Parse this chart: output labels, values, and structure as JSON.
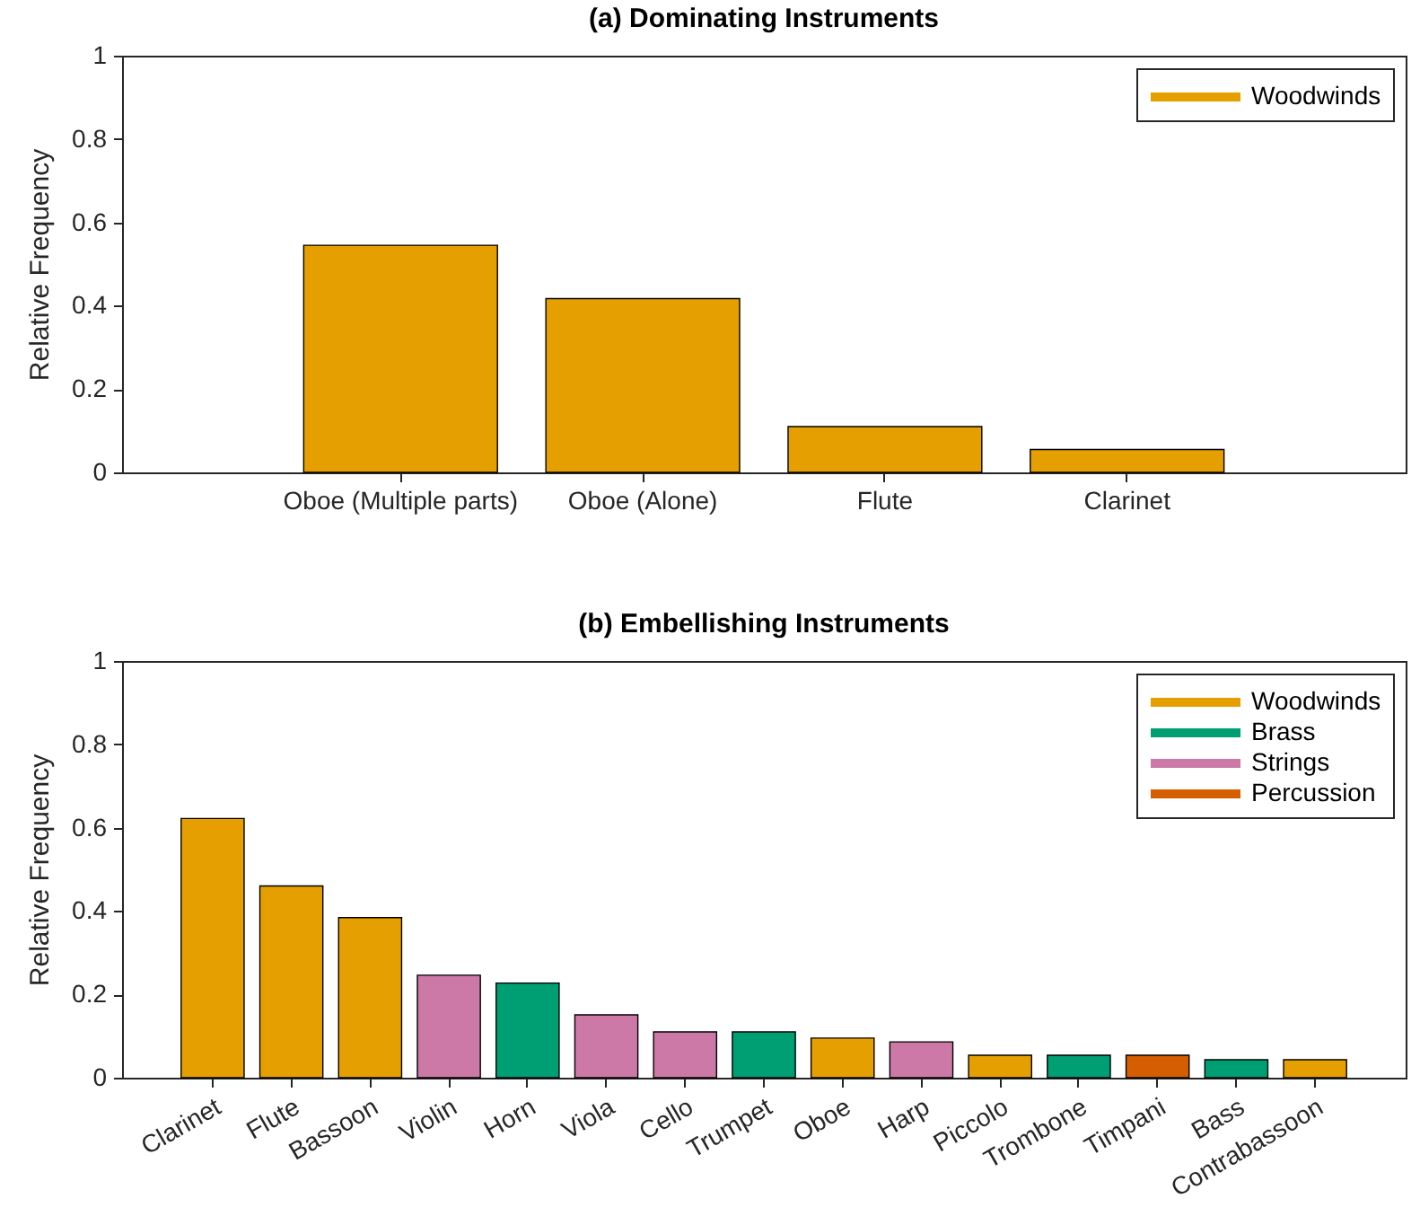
{
  "chart_data": [
    {
      "type": "bar",
      "title": "(a) Dominating Instruments",
      "ylabel": "Relative Frequency",
      "categories": [
        "Oboe (Multiple parts)",
        "Oboe (Alone)",
        "Flute",
        "Clarinet"
      ],
      "series": [
        {
          "name": "Woodwinds",
          "color": "#e69f00",
          "values": [
            0.545,
            0.417,
            0.11,
            0.055
          ]
        }
      ],
      "ylim": [
        0,
        1
      ],
      "yticks": [
        0,
        0.2,
        0.4,
        0.6,
        0.8,
        1
      ],
      "legend": "top right"
    },
    {
      "type": "bar",
      "title": "(b) Embellishing Instruments",
      "ylabel": "Relative Frequency",
      "categories": [
        "Clarinet",
        "Flute",
        "Bassoon",
        "Violin",
        "Horn",
        "Viola",
        "Cello",
        "Trumpet",
        "Oboe",
        "Harp",
        "Piccolo",
        "Trombone",
        "Timpani",
        "Bass",
        "Contrabassoon"
      ],
      "series": [
        {
          "name": "Woodwinds",
          "color": "#e69f00",
          "values": [
            0.622,
            0.46,
            0.384,
            null,
            null,
            null,
            null,
            null,
            0.095,
            null,
            0.054,
            null,
            null,
            null,
            0.043
          ]
        },
        {
          "name": "Brass",
          "color": "#009e73",
          "values": [
            null,
            null,
            null,
            null,
            0.227,
            null,
            null,
            0.11,
            null,
            null,
            null,
            0.054,
            null,
            0.043,
            null
          ]
        },
        {
          "name": "Strings",
          "color": "#cc79a7",
          "values": [
            null,
            null,
            null,
            0.246,
            null,
            0.151,
            0.11,
            null,
            null,
            0.086,
            null,
            null,
            null,
            null,
            null
          ]
        },
        {
          "name": "Percussion",
          "color": "#d55e00",
          "values": [
            null,
            null,
            null,
            null,
            null,
            null,
            null,
            null,
            null,
            null,
            null,
            null,
            0.054,
            null,
            null
          ]
        }
      ],
      "stacked": true,
      "ylim": [
        0,
        1
      ],
      "yticks": [
        0,
        0.2,
        0.4,
        0.6,
        0.8,
        1
      ],
      "legend": "top right"
    }
  ]
}
